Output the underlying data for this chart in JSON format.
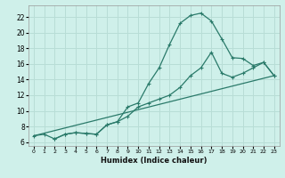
{
  "background_color": "#cff0ea",
  "grid_color": "#b8ddd6",
  "line_color": "#2a7a6a",
  "xlabel": "Humidex (Indice chaleur)",
  "xlim": [
    -0.5,
    23.5
  ],
  "ylim": [
    5.5,
    23.5
  ],
  "yticks": [
    6,
    8,
    10,
    12,
    14,
    16,
    18,
    20,
    22
  ],
  "xticks": [
    0,
    1,
    2,
    3,
    4,
    5,
    6,
    7,
    8,
    9,
    10,
    11,
    12,
    13,
    14,
    15,
    16,
    17,
    18,
    19,
    20,
    21,
    22,
    23
  ],
  "curve1_x": [
    0,
    1,
    2,
    3,
    4,
    5,
    6,
    7,
    8,
    9,
    10,
    11,
    12,
    13,
    14,
    15,
    16,
    17,
    18,
    19,
    20,
    21,
    22,
    23
  ],
  "curve1_y": [
    6.8,
    7.0,
    6.4,
    7.0,
    7.2,
    7.1,
    7.0,
    8.2,
    8.6,
    10.5,
    11.0,
    13.5,
    15.5,
    18.5,
    21.2,
    22.2,
    22.5,
    21.5,
    19.2,
    16.8,
    16.7,
    15.8,
    16.2,
    14.5
  ],
  "curve2_x": [
    2,
    3,
    4,
    5,
    6,
    7,
    8,
    9,
    10,
    11,
    12,
    13,
    14,
    15,
    16,
    17,
    18,
    19,
    20,
    21,
    22,
    23
  ],
  "curve2_y": [
    6.4,
    7.0,
    7.2,
    7.1,
    7.0,
    8.2,
    8.6,
    9.3,
    10.5,
    11.0,
    11.5,
    12.0,
    13.0,
    14.5,
    15.5,
    17.5,
    14.8,
    14.3,
    14.8,
    15.5,
    16.2,
    14.5
  ],
  "curve3_x": [
    0,
    23
  ],
  "curve3_y": [
    6.8,
    14.5
  ],
  "marker": "+",
  "markersize": 3.5,
  "linewidth": 0.9
}
